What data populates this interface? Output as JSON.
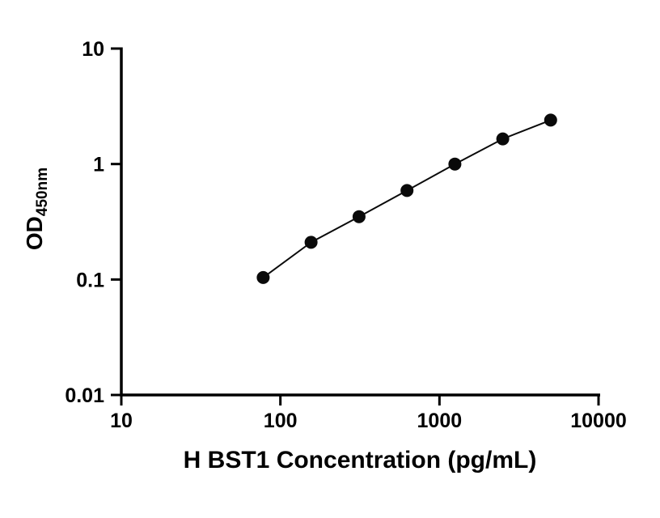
{
  "chart": {
    "ylabel_main": "OD",
    "ylabel_sub": "450nm"
  },
  "chart_data": {
    "type": "scatter",
    "title": "",
    "xlabel": "H BST1 Concentration (pg/mL)",
    "ylabel": "OD450nm",
    "xscale": "log",
    "yscale": "log",
    "xlim": [
      10,
      10000
    ],
    "ylim": [
      0.01,
      10
    ],
    "x_ticks": [
      10,
      100,
      1000,
      10000
    ],
    "x_tick_labels": [
      "10",
      "100",
      "1000",
      "10000"
    ],
    "y_ticks": [
      10,
      1,
      0.1,
      0.01
    ],
    "y_tick_labels": [
      "10",
      "1",
      "0.1",
      "0.01"
    ],
    "points": [
      {
        "x": 78,
        "y": 0.104
      },
      {
        "x": 156,
        "y": 0.21
      },
      {
        "x": 312,
        "y": 0.35
      },
      {
        "x": 625,
        "y": 0.59
      },
      {
        "x": 1250,
        "y": 1.0
      },
      {
        "x": 2500,
        "y": 1.65
      },
      {
        "x": 5000,
        "y": 2.4
      }
    ],
    "line_style": "solid",
    "marker": "filled-circle",
    "marker_color": "#0a0a0a",
    "line_color": "#0a0a0a",
    "axis_color": "#000000",
    "grid": false,
    "legend": "none"
  }
}
